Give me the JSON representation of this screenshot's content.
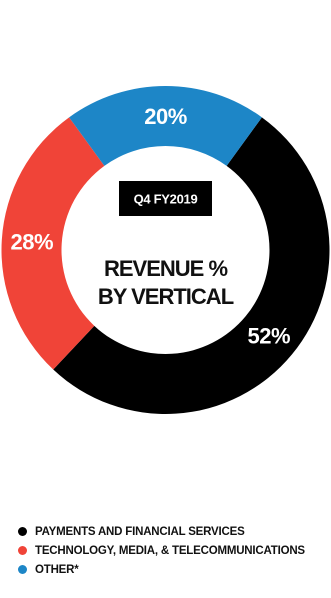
{
  "chart_data": {
    "type": "pie",
    "title": "REVENUE % BY VERTICAL",
    "period": "Q4 FY2019",
    "donut": true,
    "categories": [
      "PAYMENTS AND FINANCIAL SERVICES",
      "TECHNOLOGY, MEDIA, & TELECOMMUNICATIONS",
      "OTHER*"
    ],
    "values": [
      52,
      28,
      20
    ],
    "data_labels": [
      "52%",
      "28%",
      "20%"
    ],
    "colors": [
      "#000000",
      "#f04438",
      "#1d86c7"
    ],
    "legend_position": "bottom-left"
  },
  "center": {
    "badge": "Q4 FY2019",
    "title_line1": "REVENUE %",
    "title_line2": "BY VERTICAL"
  },
  "legend": [
    {
      "label": "PAYMENTS AND FINANCIAL SERVICES",
      "color": "#000000"
    },
    {
      "label": "TECHNOLOGY, MEDIA, & TELECOMMUNICATIONS",
      "color": "#f04438"
    },
    {
      "label": "OTHER*",
      "color": "#1d86c7"
    }
  ]
}
